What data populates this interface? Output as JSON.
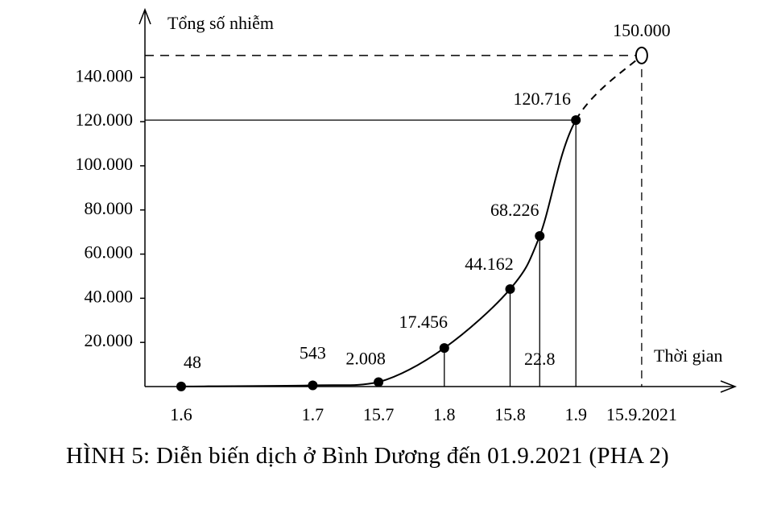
{
  "chart_data": {
    "type": "line",
    "ylabel": "Tổng số nhiễm",
    "xlabel": "Thời gian",
    "caption": "HÌNH 5: Diễn biến dịch ở Bình Dương đến 01.9.2021 (PHA 2)",
    "categories": [
      "1.6",
      "1.7",
      "15.7",
      "1.8",
      "15.8",
      "22.8",
      "1.9",
      "15.9.2021"
    ],
    "values": [
      48,
      543,
      2008,
      17456,
      44162,
      68226,
      120716,
      150000
    ],
    "value_labels": [
      "48",
      "543",
      "2.008",
      "17.456",
      "44.162",
      "68.226",
      "120.716",
      "150.000"
    ],
    "dashed_from": 6,
    "color": "#000000",
    "ylim": [
      0,
      170000
    ],
    "yticks": [
      {
        "value": 20000,
        "label": "20.000"
      },
      {
        "value": 40000,
        "label": "40.000"
      },
      {
        "value": 60000,
        "label": "60.000"
      },
      {
        "value": 80000,
        "label": "80.000"
      },
      {
        "value": 100000,
        "label": "100.000"
      },
      {
        "value": 120000,
        "label": "120.000"
      },
      {
        "value": 140000,
        "label": "140.000"
      }
    ]
  }
}
